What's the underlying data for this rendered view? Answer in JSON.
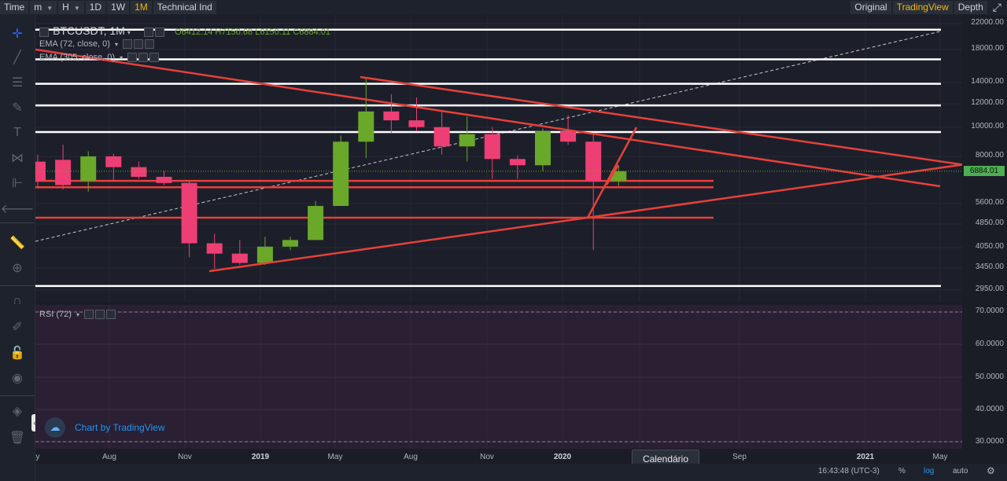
{
  "topbar": {
    "items": [
      {
        "label": "Time",
        "caret": false,
        "active": false
      },
      {
        "label": "m",
        "caret": true,
        "active": false
      },
      {
        "label": "H",
        "caret": true,
        "active": false
      },
      {
        "label": "1D",
        "caret": false,
        "active": false
      },
      {
        "label": "1W",
        "caret": false,
        "active": false
      },
      {
        "label": "1M",
        "caret": false,
        "active": true
      },
      {
        "label": "Technical Ind",
        "caret": false,
        "active": false
      }
    ],
    "right": [
      {
        "label": "Original",
        "active": false
      },
      {
        "label": "TradingView",
        "active": true
      },
      {
        "label": "Depth",
        "active": false
      }
    ]
  },
  "legend": {
    "symbol": "BTCUSDT, 1M",
    "ohlc": "O6412.14 H7150.68 L6150.11 C6884.01",
    "ema1": "EMA (72, close, 0)",
    "ema2": "EMA (305, close, 0)",
    "rsi": "RSI (72)"
  },
  "price_axis": {
    "labels": [
      "22000.00",
      "18000.00",
      "14000.00",
      "12000.00",
      "10000.00",
      "8000.00",
      "5600.00",
      "4850.00",
      "4050.00",
      "3450.00",
      "2950.00"
    ],
    "current_price": "6884.01",
    "rsi_labels": [
      "70.0000",
      "60.0000",
      "50.0000",
      "40.0000",
      "30.0000"
    ]
  },
  "time_axis": {
    "labels": [
      {
        "text": "y",
        "bold": false
      },
      {
        "text": "Aug",
        "bold": false
      },
      {
        "text": "Nov",
        "bold": false
      },
      {
        "text": "2019",
        "bold": true
      },
      {
        "text": "May",
        "bold": false
      },
      {
        "text": "Aug",
        "bold": false
      },
      {
        "text": "Nov",
        "bold": false
      },
      {
        "text": "2020",
        "bold": true
      },
      {
        "text": "Sep",
        "bold": false
      },
      {
        "text": "2021",
        "bold": true
      },
      {
        "text": "May",
        "bold": false
      }
    ]
  },
  "tooltip": "Calendário",
  "watermark": "Chart by TradingView",
  "bottom": {
    "time": "16:43:48 (UTC-3)",
    "pct": "%",
    "log": "log",
    "auto": "auto"
  },
  "colors": {
    "up": "#6aa829",
    "down": "#ee3f74",
    "trend": "#e8403a",
    "hline": "#ffffff",
    "accent": "#f0b90b",
    "rsi_bg": "#2a1f33"
  },
  "chart_data": {
    "type": "candlestick",
    "symbol": "BTCUSDT",
    "interval": "1M",
    "y_scale": "log",
    "candles": [
      {
        "o": 7400,
        "h": 7800,
        "l": 6100,
        "c": 6400
      },
      {
        "o": 7500,
        "h": 8400,
        "l": 6000,
        "c": 6200
      },
      {
        "o": 6400,
        "h": 8000,
        "l": 5900,
        "c": 7700
      },
      {
        "o": 7700,
        "h": 7850,
        "l": 6400,
        "c": 7100
      },
      {
        "o": 7100,
        "h": 7400,
        "l": 6500,
        "c": 6600
      },
      {
        "o": 6600,
        "h": 6900,
        "l": 6200,
        "c": 6300
      },
      {
        "o": 6300,
        "h": 6400,
        "l": 3600,
        "c": 4000
      },
      {
        "o": 4000,
        "h": 4300,
        "l": 3300,
        "c": 3700
      },
      {
        "o": 3700,
        "h": 4100,
        "l": 3400,
        "c": 3450
      },
      {
        "o": 3450,
        "h": 4200,
        "l": 3400,
        "c": 3900
      },
      {
        "o": 3900,
        "h": 4200,
        "l": 3800,
        "c": 4100
      },
      {
        "o": 4100,
        "h": 5500,
        "l": 4100,
        "c": 5300
      },
      {
        "o": 5300,
        "h": 9000,
        "l": 5300,
        "c": 8600
      },
      {
        "o": 8600,
        "h": 13800,
        "l": 7600,
        "c": 10800
      },
      {
        "o": 10800,
        "h": 12300,
        "l": 9200,
        "c": 10100
      },
      {
        "o": 10100,
        "h": 12000,
        "l": 9300,
        "c": 9600
      },
      {
        "o": 9600,
        "h": 10800,
        "l": 7800,
        "c": 8300
      },
      {
        "o": 8300,
        "h": 10400,
        "l": 7400,
        "c": 9100
      },
      {
        "o": 9100,
        "h": 9600,
        "l": 6500,
        "c": 7550
      },
      {
        "o": 7550,
        "h": 7750,
        "l": 6500,
        "c": 7200
      },
      {
        "o": 7200,
        "h": 9500,
        "l": 6900,
        "c": 9300
      },
      {
        "o": 9300,
        "h": 10500,
        "l": 8400,
        "c": 8600
      },
      {
        "o": 8600,
        "h": 9200,
        "l": 3800,
        "c": 6400
      },
      {
        "o": 6400,
        "h": 7150,
        "l": 6150,
        "c": 6884
      }
    ],
    "horizontal_levels": [
      20000,
      16000,
      13300,
      11300,
      9250,
      6400,
      6100,
      4850,
      2900
    ],
    "current_price": 6884.01,
    "rsi_range": [
      30,
      70
    ]
  }
}
